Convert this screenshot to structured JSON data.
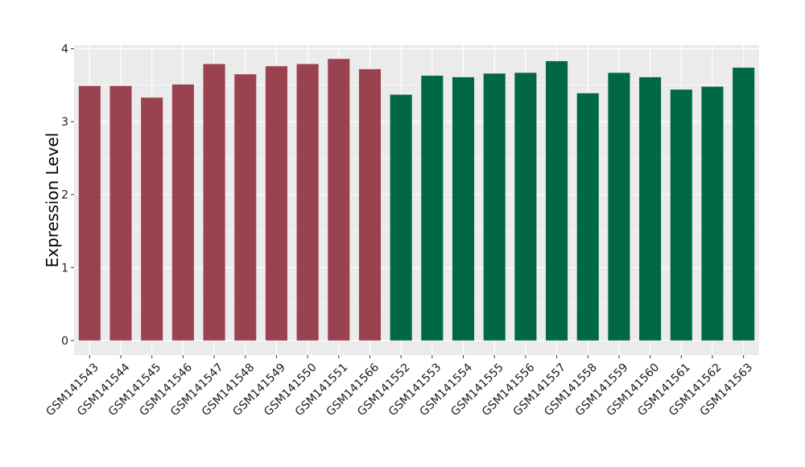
{
  "chart_data": {
    "type": "bar",
    "title": "",
    "xlabel": "",
    "ylabel": "Expression Level",
    "ylim": [
      -0.2,
      4.05
    ],
    "yticks": [
      0,
      1,
      2,
      3,
      4
    ],
    "grid": true,
    "legend": "none",
    "colors": {
      "panel_background": "#ebebeb",
      "grid": "#ffffff",
      "group_a": "#9b4250",
      "group_b": "#006846"
    },
    "categories": [
      "GSM141543",
      "GSM141544",
      "GSM141545",
      "GSM141546",
      "GSM141547",
      "GSM141548",
      "GSM141549",
      "GSM141550",
      "GSM141551",
      "GSM141566",
      "GSM141552",
      "GSM141553",
      "GSM141554",
      "GSM141555",
      "GSM141556",
      "GSM141557",
      "GSM141558",
      "GSM141559",
      "GSM141560",
      "GSM141561",
      "GSM141562",
      "GSM141563"
    ],
    "values": [
      3.49,
      3.49,
      3.33,
      3.51,
      3.79,
      3.65,
      3.76,
      3.79,
      3.86,
      3.72,
      3.37,
      3.63,
      3.61,
      3.66,
      3.67,
      3.83,
      3.39,
      3.67,
      3.61,
      3.44,
      3.48,
      3.74
    ],
    "groups": [
      "group_a",
      "group_a",
      "group_a",
      "group_a",
      "group_a",
      "group_a",
      "group_a",
      "group_a",
      "group_a",
      "group_a",
      "group_b",
      "group_b",
      "group_b",
      "group_b",
      "group_b",
      "group_b",
      "group_b",
      "group_b",
      "group_b",
      "group_b",
      "group_b",
      "group_b"
    ]
  }
}
